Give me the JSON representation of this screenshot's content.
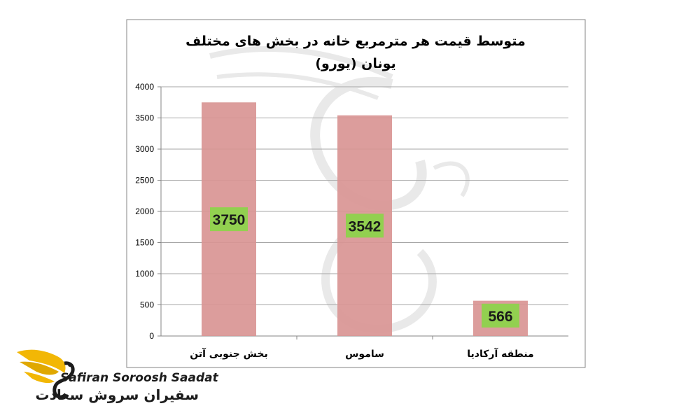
{
  "chart_data": {
    "type": "bar",
    "title_line1": "متوسط قیمت هر مترمربع خانه در بخش های مختلف",
    "title_line2": "یونان (یورو)",
    "categories": [
      "بخش جنوبی آتن",
      "ساموس",
      "منطقه آرکادیا"
    ],
    "values": [
      3750,
      3542,
      566
    ],
    "data_labels": [
      "3750",
      "3542",
      "566"
    ],
    "ylim": [
      0,
      4000
    ],
    "yticks": [
      0,
      500,
      1000,
      1500,
      2000,
      2500,
      3000,
      3500,
      4000
    ],
    "grid": true,
    "legend": "none",
    "bar_color": "#d99594",
    "label_bg_color": "#92d050"
  },
  "brand": {
    "name_en": "Safiran Soroosh Saadat",
    "name_fa": "سفیران سروش سعادت",
    "accent_color": "#f2b705"
  }
}
